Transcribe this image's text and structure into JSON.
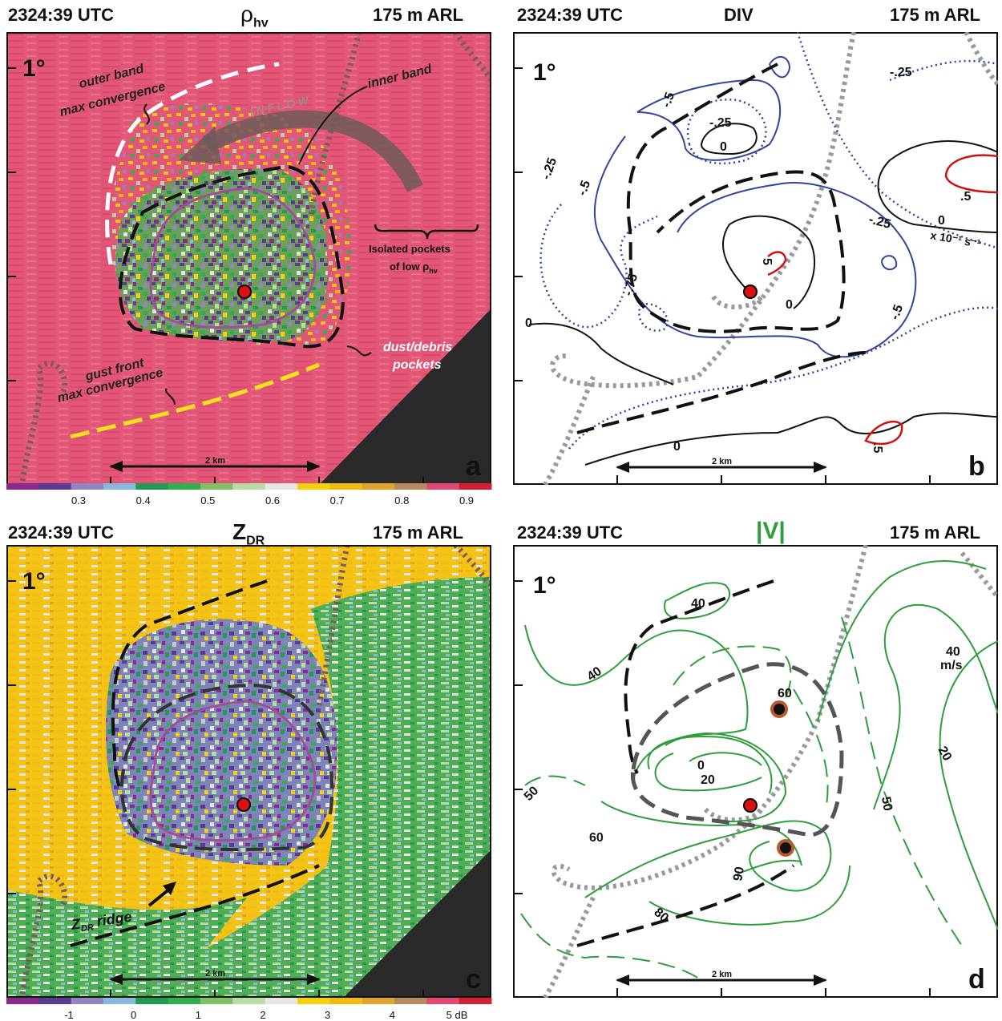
{
  "panels": {
    "a": {
      "time": "2324:39 UTC",
      "variable": "ρ",
      "variable_sub": "hv",
      "height": "175 m ARL",
      "elevation": "1°",
      "letter": "a",
      "scale": "2 km",
      "annotations": {
        "outer_band_1": "outer band",
        "outer_band_2": "max convergence",
        "inflow": "I N F L O W",
        "inner_band": "inner band",
        "isolated_1": "Isolated pockets",
        "isolated_2": "of low ρ",
        "isolated_sub": "hv",
        "dust_1": "dust/debris",
        "dust_2": "pockets",
        "gust_1": "gust front",
        "gust_2": "max convergence"
      },
      "colorbar": {
        "colors": [
          "#8b2a8e",
          "#5b3a93",
          "#8f86c0",
          "#86b9dc",
          "#1f9a4e",
          "#2fb04c",
          "#7fc261",
          "#b9dca3",
          "#e6e6e6",
          "#f6d10a",
          "#f1bb12",
          "#e2a32d",
          "#b88b5c",
          "#e24a74",
          "#d51f35"
        ],
        "ticks": [
          "0.3",
          "0.4",
          "0.5",
          "0.6",
          "0.7",
          "0.8",
          "0.9"
        ]
      }
    },
    "b": {
      "time": "2324:39 UTC",
      "variable": "DIV",
      "height": "175 m ARL",
      "elevation": "1°",
      "letter": "b",
      "scale": "2 km",
      "units": "x 10⁻¹ s⁻¹",
      "contour_labels": [
        "-.25",
        "-.5",
        "-.25",
        "0",
        "-.25",
        "-.5",
        "-.75",
        "5",
        "0",
        "0",
        ".5",
        "-.25",
        "0",
        "-.5",
        "0",
        ".5"
      ]
    },
    "c": {
      "time": "2324:39 UTC",
      "variable": "Z",
      "variable_sub": "DR",
      "height": "175 m ARL",
      "elevation": "1°",
      "letter": "c",
      "scale": "2 km",
      "ridge_label": "Z",
      "ridge_sub": "DR",
      "ridge_rest": " ridge",
      "colorbar": {
        "colors": [
          "#8b2a8e",
          "#5b3a93",
          "#8f86c0",
          "#86b9dc",
          "#1f9a4e",
          "#2fb04c",
          "#7fc261",
          "#b9dca3",
          "#e6e6e6",
          "#f6d10a",
          "#f1bb12",
          "#e2a32d",
          "#b88b5c",
          "#e24a74",
          "#d51f35"
        ],
        "ticks": [
          "-1",
          "0",
          "1",
          "2",
          "3",
          "4",
          "5 dB"
        ]
      }
    },
    "d": {
      "time": "2324:39 UTC",
      "variable": "|V|",
      "height": "175 m ARL",
      "elevation": "1°",
      "letter": "d",
      "scale": "2 km",
      "contour_labels": [
        "40",
        "40",
        "60",
        "0",
        "20",
        "50",
        "60",
        "90",
        "80",
        "50",
        "40",
        "m/s",
        "20"
      ]
    }
  },
  "colors": {
    "rhohv_bg": "#e25677",
    "zdr_bg": "#f1c40f",
    "magenta": "#a64a9b",
    "blue_contour": "#33459a",
    "red_contour": "#cc1111",
    "green_contour": "#2e9e3a",
    "gray_dots": "#999999",
    "marker": "#dd1111",
    "brown_marker": "#b85a2a"
  }
}
